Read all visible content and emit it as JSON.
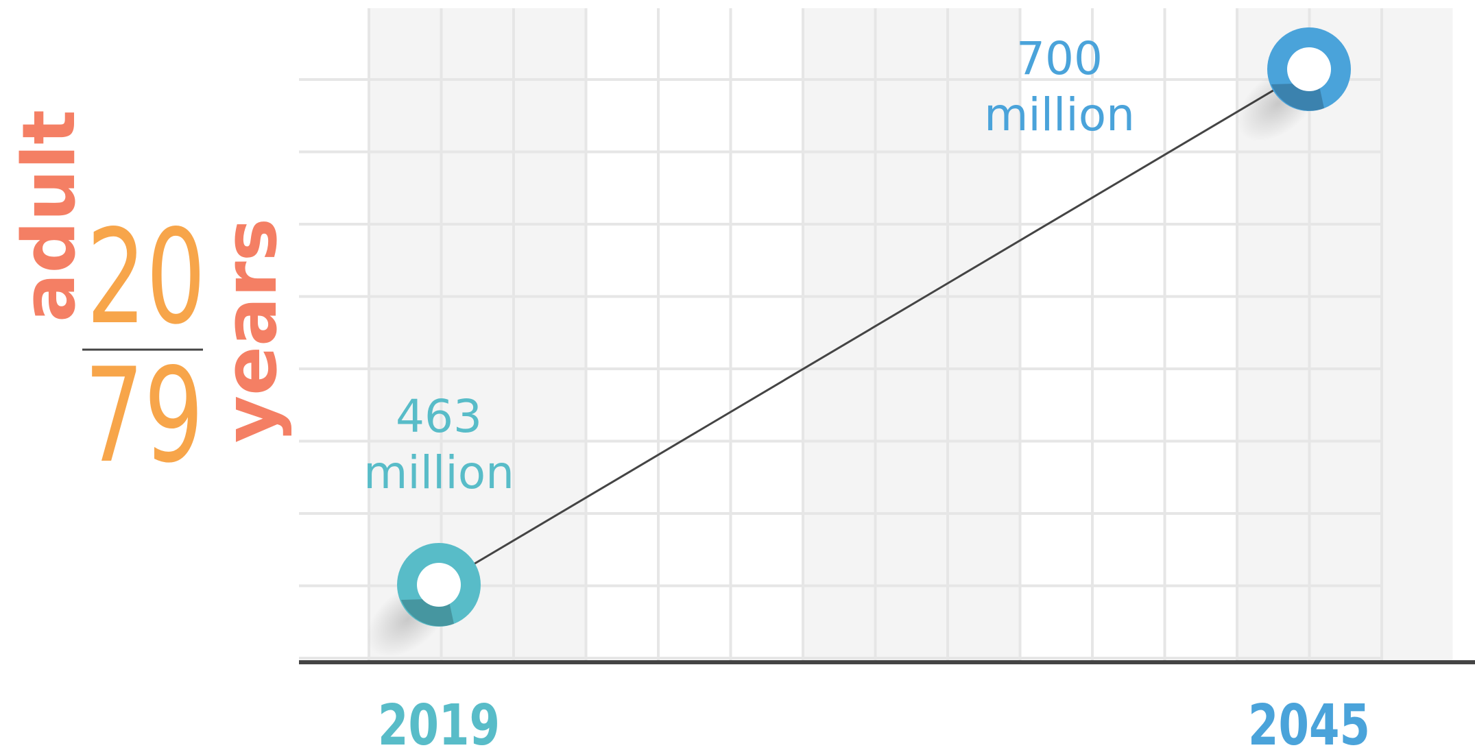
{
  "chart_data": {
    "type": "line",
    "title": "",
    "xlabel": "",
    "ylabel": {
      "word_left": "adult",
      "range_top": "20",
      "range_bottom": "79",
      "word_right": "years"
    },
    "x": [
      "2019",
      "2045"
    ],
    "series": [
      {
        "values": [
          463,
          700
        ],
        "point_labels": [
          {
            "value": "463",
            "unit": "million"
          },
          {
            "value": "700",
            "unit": "million"
          }
        ]
      }
    ],
    "ylim": [
      400,
      725
    ],
    "grid": true,
    "colors": {
      "point_2019": "#58bcc8",
      "point_2045": "#4aa3da",
      "label_adult": "#f47f64",
      "label_range": "#f7a54a",
      "label_years": "#f47f64",
      "line": "#444444",
      "axis": "#444444",
      "grid": "#e6e6e6",
      "band": "#f4f4f4"
    }
  }
}
